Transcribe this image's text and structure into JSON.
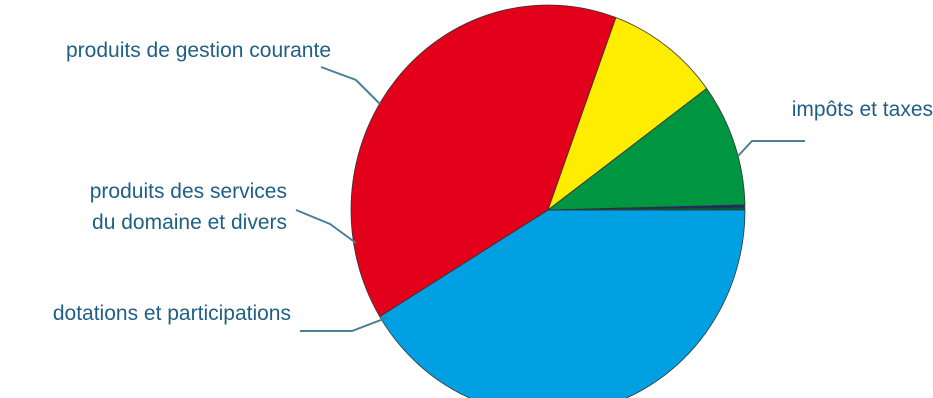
{
  "chart_data": {
    "type": "pie",
    "categories": [
      "impôts et taxes",
      "dotations et participations",
      "produits des services du domaine et divers",
      "produits de gestion courante"
    ],
    "values": [
      41.3,
      39.3,
      9.3,
      9.7
    ],
    "labels": [
      {
        "lines": [
          "impôts et taxes"
        ]
      },
      {
        "lines": [
          "dotations et participations"
        ]
      },
      {
        "lines": [
          "produits des services",
          "du domaine et divers"
        ]
      },
      {
        "lines": [
          "produits de gestion courante"
        ]
      }
    ],
    "other_slices": [
      {
        "value": 0.2,
        "color": "#1b2a72"
      },
      {
        "value": 0.2,
        "color": "#0a5a3c"
      }
    ]
  },
  "colors": {
    "slices": [
      "#00a0e3",
      "#e2001a",
      "#ffed00",
      "#009540"
    ],
    "slice_edge": "#333333",
    "label_text": "#1f5f86",
    "leader_line": "#4a8096"
  }
}
